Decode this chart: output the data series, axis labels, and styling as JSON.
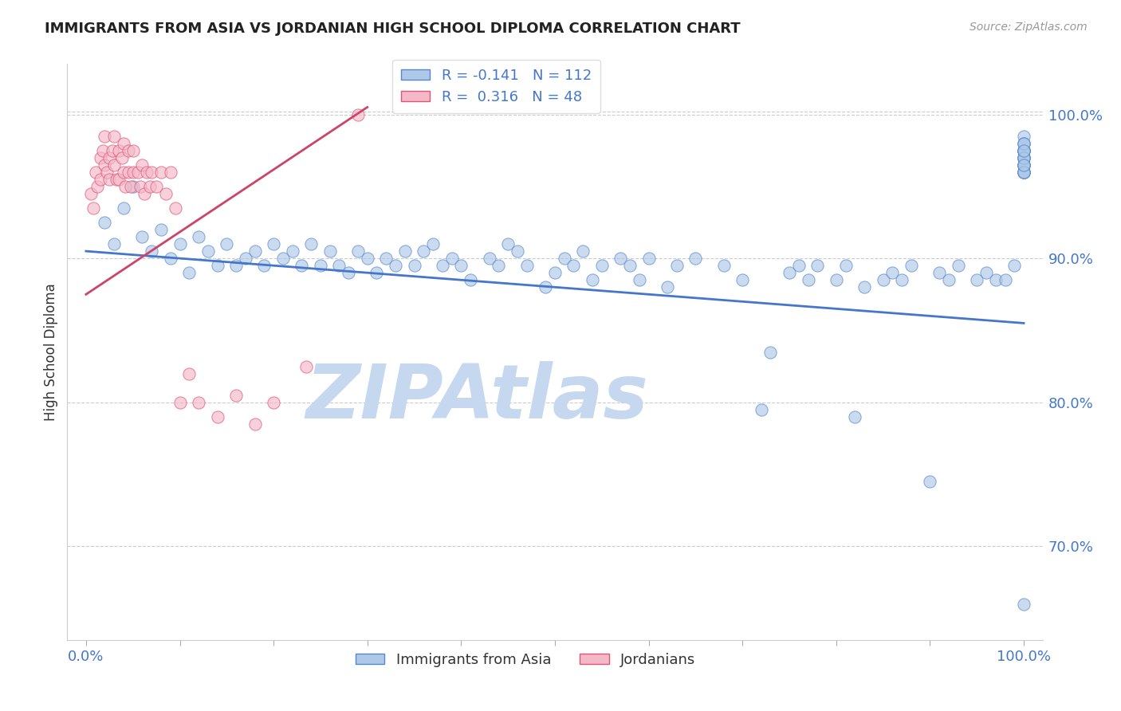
{
  "title": "IMMIGRANTS FROM ASIA VS JORDANIAN HIGH SCHOOL DIPLOMA CORRELATION CHART",
  "source_text": "Source: ZipAtlas.com",
  "ylabel": "High School Diploma",
  "xlim": [
    -0.02,
    1.02
  ],
  "ylim": [
    0.635,
    1.035
  ],
  "yticks": [
    0.7,
    0.8,
    0.9,
    1.0
  ],
  "ytick_labels": [
    "70.0%",
    "80.0%",
    "90.0%",
    "100.0%"
  ],
  "xticks": [
    0.0,
    0.1,
    0.2,
    0.3,
    0.4,
    0.5,
    0.6,
    0.7,
    0.8,
    0.9,
    1.0
  ],
  "xtick_labels_shown": [
    "0.0%",
    "",
    "",
    "",
    "",
    "",
    "",
    "",
    "",
    "",
    "100.0%"
  ],
  "blue_R": -0.141,
  "blue_N": 112,
  "pink_R": 0.316,
  "pink_N": 48,
  "blue_color": "#aec8e8",
  "pink_color": "#f5b8c8",
  "blue_edge_color": "#5588cc",
  "pink_edge_color": "#dd5577",
  "blue_line_color": "#4477cc",
  "pink_line_color": "#cc4466",
  "legend_label_blue": "Immigrants from Asia",
  "legend_label_pink": "Jordanians",
  "watermark": "ZIPAtlas",
  "watermark_color": "#c5d8ef",
  "blue_scatter_x": [
    0.02,
    0.03,
    0.04,
    0.05,
    0.06,
    0.07,
    0.08,
    0.09,
    0.1,
    0.11,
    0.12,
    0.13,
    0.14,
    0.15,
    0.16,
    0.17,
    0.18,
    0.19,
    0.2,
    0.21,
    0.22,
    0.23,
    0.24,
    0.25,
    0.26,
    0.27,
    0.28,
    0.29,
    0.3,
    0.31,
    0.32,
    0.33,
    0.34,
    0.35,
    0.36,
    0.37,
    0.38,
    0.39,
    0.4,
    0.41,
    0.43,
    0.44,
    0.45,
    0.46,
    0.47,
    0.49,
    0.5,
    0.51,
    0.52,
    0.53,
    0.54,
    0.55,
    0.57,
    0.58,
    0.59,
    0.6,
    0.62,
    0.63,
    0.65,
    0.68,
    0.7,
    0.72,
    0.73,
    0.75,
    0.76,
    0.77,
    0.78,
    0.8,
    0.81,
    0.82,
    0.83,
    0.85,
    0.86,
    0.87,
    0.88,
    0.9,
    0.91,
    0.92,
    0.93,
    0.95,
    0.96,
    0.97,
    0.98,
    0.99,
    1.0,
    1.0,
    1.0,
    1.0,
    1.0,
    1.0,
    1.0,
    1.0,
    1.0,
    1.0,
    1.0,
    1.0,
    1.0,
    1.0,
    1.0,
    1.0,
    1.0,
    1.0,
    1.0,
    1.0,
    1.0,
    1.0,
    1.0,
    1.0,
    1.0,
    1.0,
    1.0,
    1.0
  ],
  "blue_scatter_y": [
    0.925,
    0.91,
    0.935,
    0.95,
    0.915,
    0.905,
    0.92,
    0.9,
    0.91,
    0.89,
    0.915,
    0.905,
    0.895,
    0.91,
    0.895,
    0.9,
    0.905,
    0.895,
    0.91,
    0.9,
    0.905,
    0.895,
    0.91,
    0.895,
    0.905,
    0.895,
    0.89,
    0.905,
    0.9,
    0.89,
    0.9,
    0.895,
    0.905,
    0.895,
    0.905,
    0.91,
    0.895,
    0.9,
    0.895,
    0.885,
    0.9,
    0.895,
    0.91,
    0.905,
    0.895,
    0.88,
    0.89,
    0.9,
    0.895,
    0.905,
    0.885,
    0.895,
    0.9,
    0.895,
    0.885,
    0.9,
    0.88,
    0.895,
    0.9,
    0.895,
    0.885,
    0.795,
    0.835,
    0.89,
    0.895,
    0.885,
    0.895,
    0.885,
    0.895,
    0.79,
    0.88,
    0.885,
    0.89,
    0.885,
    0.895,
    0.745,
    0.89,
    0.885,
    0.895,
    0.885,
    0.89,
    0.885,
    0.885,
    0.895,
    0.965,
    0.975,
    0.985,
    0.97,
    0.96,
    0.975,
    0.965,
    0.98,
    0.97,
    0.96,
    0.975,
    0.96,
    0.975,
    0.96,
    0.97,
    0.975,
    0.965,
    0.98,
    0.97,
    0.96,
    0.975,
    0.965,
    0.98,
    0.97,
    0.96,
    0.965,
    0.975,
    0.66
  ],
  "pink_scatter_x": [
    0.005,
    0.008,
    0.01,
    0.012,
    0.015,
    0.015,
    0.018,
    0.02,
    0.02,
    0.022,
    0.025,
    0.025,
    0.028,
    0.03,
    0.03,
    0.032,
    0.035,
    0.035,
    0.038,
    0.04,
    0.04,
    0.042,
    0.045,
    0.045,
    0.048,
    0.05,
    0.05,
    0.055,
    0.058,
    0.06,
    0.062,
    0.065,
    0.068,
    0.07,
    0.075,
    0.08,
    0.085,
    0.09,
    0.095,
    0.1,
    0.11,
    0.12,
    0.14,
    0.16,
    0.18,
    0.2,
    0.235,
    0.29
  ],
  "pink_scatter_y": [
    0.945,
    0.935,
    0.96,
    0.95,
    0.97,
    0.955,
    0.975,
    0.965,
    0.985,
    0.96,
    0.97,
    0.955,
    0.975,
    0.965,
    0.985,
    0.955,
    0.975,
    0.955,
    0.97,
    0.96,
    0.98,
    0.95,
    0.96,
    0.975,
    0.95,
    0.96,
    0.975,
    0.96,
    0.95,
    0.965,
    0.945,
    0.96,
    0.95,
    0.96,
    0.95,
    0.96,
    0.945,
    0.96,
    0.935,
    0.8,
    0.82,
    0.8,
    0.79,
    0.805,
    0.785,
    0.8,
    0.825,
    1.0
  ],
  "blue_trend_x": [
    0.0,
    1.0
  ],
  "blue_trend_y": [
    0.905,
    0.855
  ],
  "pink_trend_x": [
    0.0,
    0.3
  ],
  "pink_trend_y": [
    0.875,
    1.005
  ]
}
